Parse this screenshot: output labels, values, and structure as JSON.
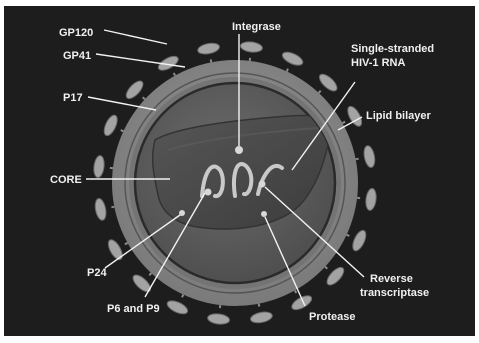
{
  "labels": {
    "gp120": "GP120",
    "gp41": "GP41",
    "p17": "P17",
    "core": "CORE",
    "p24": "P24",
    "p6_p9": "P6 and P9",
    "integrase": "Integrase",
    "rna_line1": "Single-stranded",
    "rna_line2": "HIV-1 RNA",
    "lipid": "Lipid bilayer",
    "rt_line1": "Reverse",
    "rt_line2": "transcriptase",
    "protease": "Protease"
  },
  "colors": {
    "background": "#1d1d1d",
    "outer_ring": "#8a8a8a",
    "matrix": "#6f6f6f",
    "inner_fill": "#5c5c5c",
    "core": "#4a4a4a",
    "glycoprotein": "#a0a0a0",
    "label": "#f0f0f0"
  }
}
